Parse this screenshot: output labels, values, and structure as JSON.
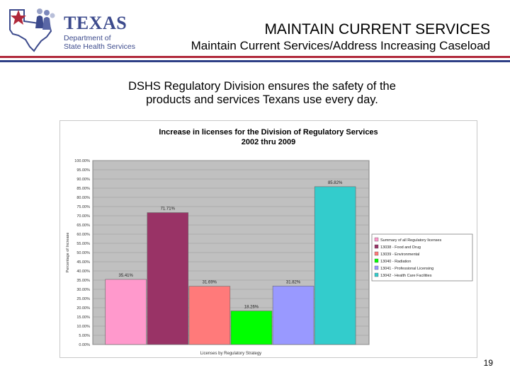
{
  "header": {
    "logo_word": "TEXAS",
    "logo_line1": "Department of",
    "logo_line2": "State Health Services",
    "title": "MAINTAIN CURRENT SERVICES",
    "subtitle": "Maintain Current Services/Address Increasing Caseload"
  },
  "statement": {
    "line1": "DSHS Regulatory Division ensures the safety of the",
    "line2": "products and services Texans use every day."
  },
  "colors": {
    "brand_red": "#b0283a",
    "brand_blue": "#2e3f86",
    "plot_bg": "#c0c0c0",
    "series": [
      "#ff99cc",
      "#993366",
      "#ff7a7a",
      "#00ff00",
      "#9999ff",
      "#33cccc"
    ]
  },
  "chart_data": {
    "type": "bar",
    "title": "Increase in licenses for the Division of Regulatory Services",
    "subtitle": "2002 thru 2009",
    "xlabel": "Licenses by Regulatory Strategy",
    "ylabel": "Percentage of Increase",
    "ylim": [
      0,
      100
    ],
    "ytick_step": 5,
    "yticks": [
      "0.00%",
      "5.00%",
      "10.00%",
      "15.00%",
      "20.00%",
      "25.00%",
      "30.00%",
      "35.00%",
      "40.00%",
      "45.00%",
      "50.00%",
      "55.00%",
      "60.00%",
      "65.00%",
      "70.00%",
      "75.00%",
      "80.00%",
      "85.00%",
      "90.00%",
      "95.00%",
      "100.00%"
    ],
    "grid": true,
    "legend_position": "right",
    "bars": [
      {
        "name": "Summary of all Regulatory licenses",
        "value": 35.41,
        "label": "35.41%"
      },
      {
        "name": "13038 - Food and Drug",
        "value": 71.71,
        "label": "71.71%"
      },
      {
        "name": "13039 - Environmental",
        "value": 31.69,
        "label": "31.69%"
      },
      {
        "name": "13040 - Radiation",
        "value": 18.26,
        "label": "18.26%"
      },
      {
        "name": "13041 - Professional Licensing",
        "value": 31.82,
        "label": "31.82%"
      },
      {
        "name": "13042 - Health Care Facilities",
        "value": 85.82,
        "label": "85.82%"
      }
    ]
  },
  "footer": {
    "page_number": "19"
  }
}
